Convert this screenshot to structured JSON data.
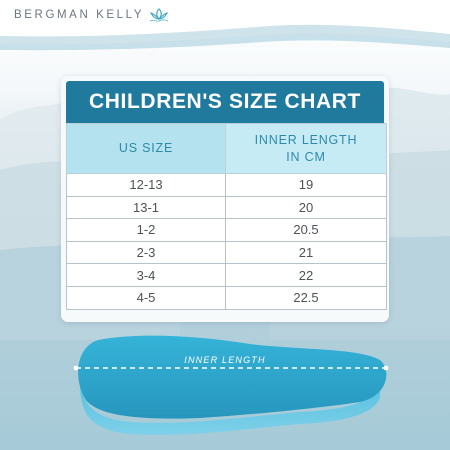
{
  "brand": {
    "name": "BERGMAN KELLY",
    "logo_icon": "lotus-wave-icon"
  },
  "colors": {
    "title_bar": "#207a9d",
    "header_cells": "#b4e2ee",
    "header_text": "#2d8aa9",
    "insole": "#2fa9ce"
  },
  "chart": {
    "title": "CHILDREN'S SIZE CHART",
    "columns": [
      "US SIZE",
      "INNER LENGTH",
      "IN CM"
    ],
    "rows": [
      {
        "us": "12-13",
        "cm": "19"
      },
      {
        "us": "13-1",
        "cm": "20"
      },
      {
        "us": "1-2",
        "cm": "20.5"
      },
      {
        "us": "2-3",
        "cm": "21"
      },
      {
        "us": "3-4",
        "cm": "22"
      },
      {
        "us": "4-5",
        "cm": "22.5"
      }
    ]
  },
  "insole": {
    "label": "INNER LENGTH"
  }
}
